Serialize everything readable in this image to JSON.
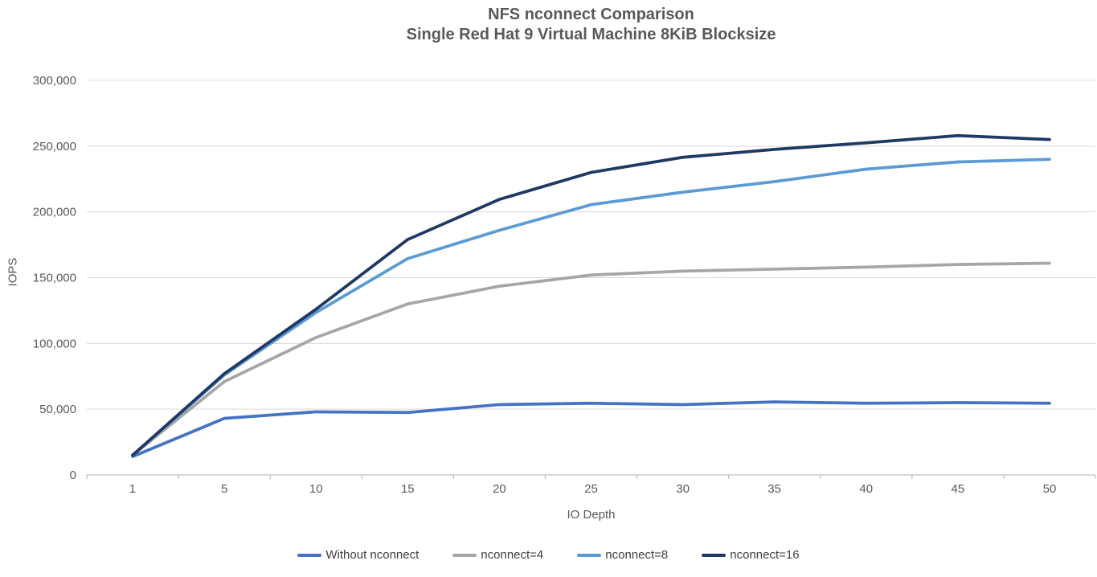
{
  "chart_data": {
    "type": "line",
    "title_line1": "NFS nconnect Comparison",
    "title_line2": "Single Red Hat 9 Virtual Machine 8KiB Blocksize",
    "xlabel": "IO Depth",
    "ylabel": "IOPS",
    "categories": [
      "1",
      "5",
      "10",
      "15",
      "20",
      "25",
      "30",
      "35",
      "40",
      "45",
      "50"
    ],
    "series": [
      {
        "name": "Without nconnect",
        "color": "#4472C4",
        "values": [
          14000,
          43000,
          48000,
          47500,
          53500,
          54500,
          53500,
          55500,
          54500,
          55000,
          54500
        ]
      },
      {
        "name": "nconnect=4",
        "color": "#A6A6A6",
        "values": [
          15000,
          71000,
          104500,
          130000,
          143500,
          152000,
          155000,
          156500,
          158000,
          160000,
          161000
        ]
      },
      {
        "name": "nconnect=8",
        "color": "#5B9BD5",
        "values": [
          15000,
          76000,
          123500,
          164500,
          186000,
          205500,
          215000,
          223000,
          232500,
          238000,
          240000
        ]
      },
      {
        "name": "nconnect=16",
        "color": "#203864",
        "values": [
          15000,
          77000,
          126000,
          179000,
          209500,
          230000,
          241500,
          247500,
          252500,
          258000,
          255000
        ]
      }
    ],
    "y_axis": {
      "min": 0,
      "max": 300000,
      "step": 50000,
      "tick_labels": [
        "0",
        "50,000",
        "100,000",
        "150,000",
        "200,000",
        "250,000",
        "300,000"
      ]
    },
    "grid": true,
    "legend_position": "bottom",
    "style": {
      "text_color": "#595959",
      "gridline_color": "#D9D9D9",
      "axis_color": "#BFBFBF",
      "line_width": 3.75
    }
  }
}
